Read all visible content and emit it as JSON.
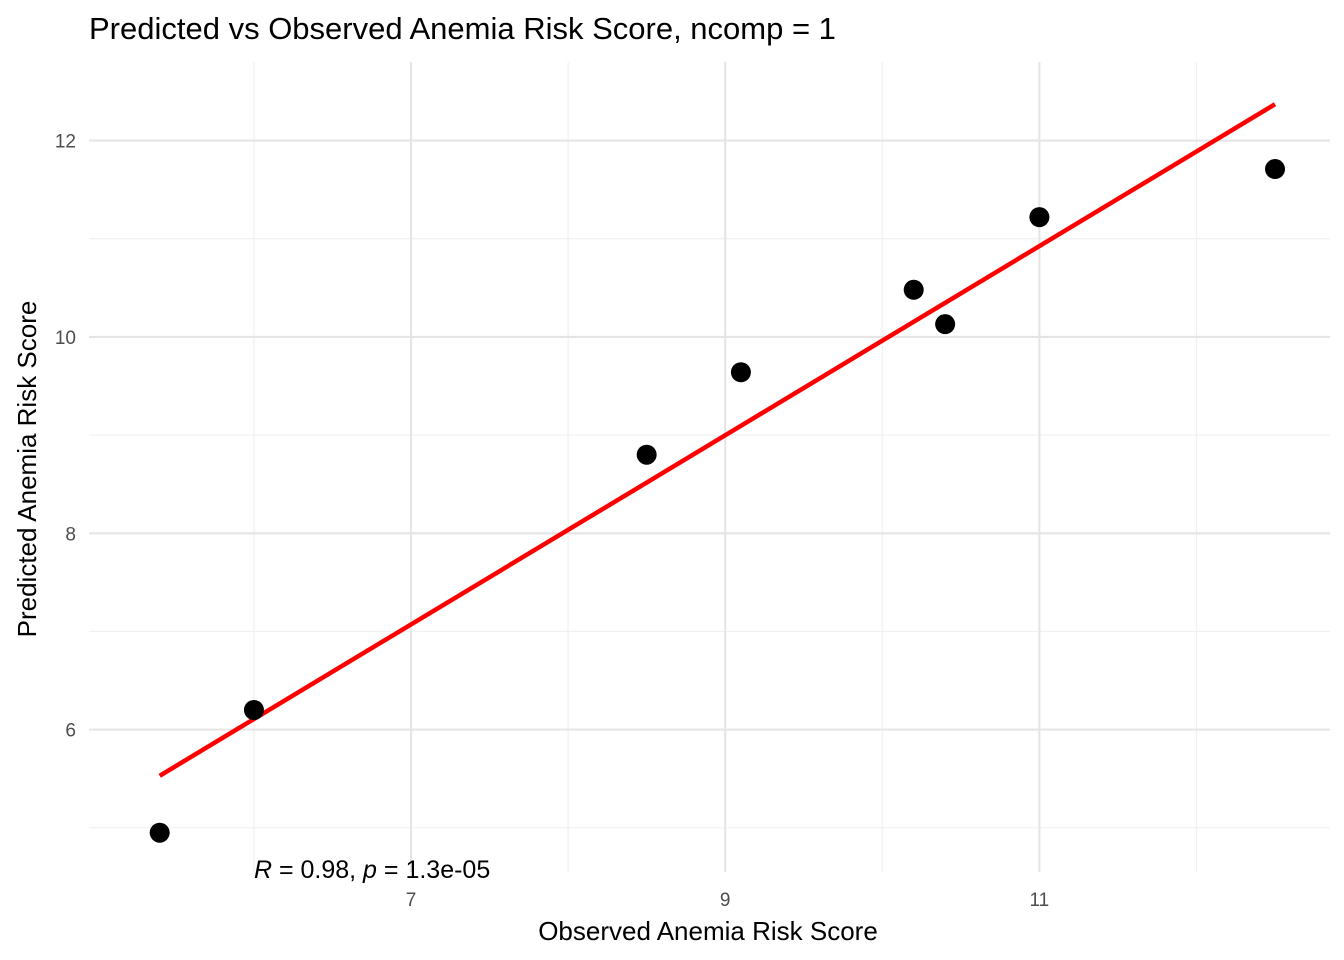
{
  "chart_data": {
    "type": "scatter",
    "title": "Predicted vs Observed Anemia Risk Score, ncomp = 1",
    "xlabel": "Observed Anemia Risk Score",
    "ylabel": "Predicted Anemia Risk Score",
    "xlim": [
      4.95,
      12.85
    ],
    "ylim": [
      4.55,
      12.8
    ],
    "x_major_ticks": [
      7,
      9,
      11
    ],
    "x_minor_ticks": [
      6,
      8,
      10,
      12
    ],
    "y_major_ticks": [
      6,
      8,
      10,
      12
    ],
    "y_minor_ticks": [
      5,
      7,
      9,
      11
    ],
    "grid": true,
    "legend": "none",
    "points": [
      {
        "x": 5.4,
        "y": 4.95
      },
      {
        "x": 6.0,
        "y": 6.2
      },
      {
        "x": 8.5,
        "y": 8.8
      },
      {
        "x": 9.1,
        "y": 9.64
      },
      {
        "x": 10.2,
        "y": 10.48
      },
      {
        "x": 10.4,
        "y": 10.13
      },
      {
        "x": 11.0,
        "y": 11.22
      },
      {
        "x": 12.5,
        "y": 11.71
      }
    ],
    "fit_line": {
      "x": [
        5.4,
        12.5
      ],
      "y": [
        5.53,
        12.37
      ],
      "color": "#ff0000"
    },
    "point_color": "#000000",
    "annotation": {
      "r_label": "R",
      "r_value": " = 0.98, ",
      "p_label": "p",
      "p_value": " = 1.3e-05",
      "x": 6.0,
      "y": 4.6
    }
  }
}
